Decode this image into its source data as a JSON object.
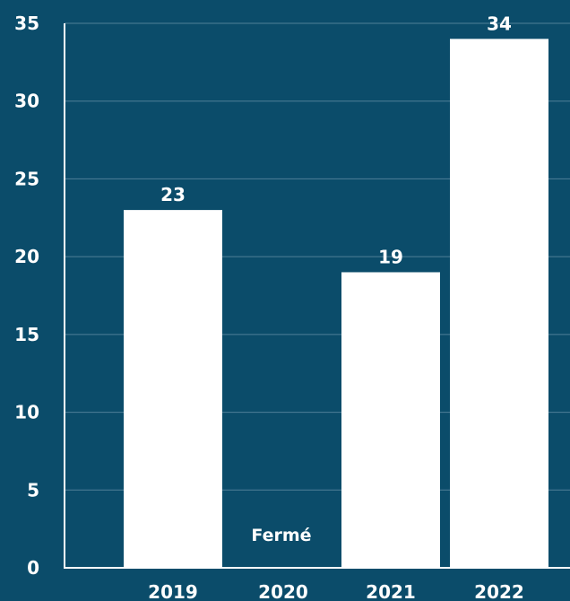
{
  "chart_data": {
    "type": "bar",
    "categories": [
      "2019",
      "2020",
      "2021",
      "2022"
    ],
    "values": [
      23,
      null,
      19,
      34
    ],
    "data_labels": [
      "23",
      "",
      "19",
      "34"
    ],
    "annotations": [
      {
        "category": "2020",
        "text": "Fermé"
      }
    ],
    "ylim": [
      0,
      35
    ],
    "yticks": [
      0,
      5,
      10,
      15,
      20,
      25,
      30,
      35
    ],
    "grid": true,
    "title": "",
    "xlabel": "",
    "ylabel": "",
    "colors": {
      "background": "#0b4c6a",
      "bar": "#ffffff",
      "grid": "#4f7f98",
      "text": "#ffffff"
    }
  }
}
